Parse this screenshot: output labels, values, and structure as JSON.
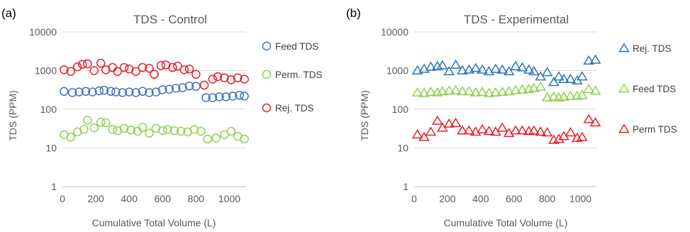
{
  "chart_data": [
    {
      "type": "scatter",
      "panel_label": "(a)",
      "title": "TDS - Control",
      "xlabel": "Cumulative Total Volume (L)",
      "ylabel": "TDS (PPM)",
      "xlim": [
        0,
        1100
      ],
      "ylim": [
        1,
        10000
      ],
      "yscale": "log",
      "grid": "horizontal",
      "legend": "right",
      "xticks": [
        "0",
        "200",
        "400",
        "600",
        "800",
        "1000"
      ],
      "yticks": [
        "1",
        "10",
        "100",
        "1000",
        "10000"
      ],
      "marker": "circle",
      "series": [
        {
          "name": "Feed TDS",
          "color": "#4472c4",
          "x": [
            10,
            60,
            100,
            140,
            180,
            220,
            250,
            290,
            320,
            360,
            400,
            440,
            480,
            520,
            560,
            600,
            640,
            680,
            720,
            760,
            800,
            860,
            900,
            940,
            980,
            1020,
            1060,
            1090
          ],
          "y": [
            290,
            270,
            280,
            290,
            280,
            300,
            310,
            290,
            280,
            270,
            280,
            270,
            290,
            270,
            280,
            320,
            330,
            350,
            360,
            400,
            390,
            200,
            200,
            210,
            210,
            220,
            230,
            220
          ]
        },
        {
          "name": "Perm. TDS",
          "color": "#8fd14f",
          "x": [
            10,
            50,
            90,
            130,
            150,
            190,
            230,
            260,
            300,
            330,
            370,
            410,
            450,
            480,
            520,
            560,
            600,
            630,
            670,
            710,
            750,
            790,
            830,
            870,
            920,
            970,
            1010,
            1050,
            1090
          ],
          "y": [
            22,
            19,
            26,
            30,
            52,
            33,
            46,
            45,
            30,
            28,
            32,
            29,
            27,
            34,
            24,
            32,
            28,
            30,
            28,
            27,
            26,
            30,
            27,
            17,
            18,
            22,
            27,
            20,
            17
          ]
        },
        {
          "name": "Rej. TDS",
          "color": "#e8212b",
          "x": [
            10,
            50,
            90,
            120,
            150,
            190,
            230,
            260,
            300,
            330,
            370,
            400,
            440,
            480,
            520,
            550,
            590,
            620,
            660,
            690,
            730,
            760,
            800,
            850,
            900,
            930,
            970,
            1010,
            1050,
            1090
          ],
          "y": [
            1050,
            950,
            1250,
            1450,
            1500,
            1000,
            1550,
            1050,
            1200,
            950,
            1200,
            1100,
            950,
            1200,
            1150,
            800,
            1350,
            1400,
            1200,
            1300,
            1050,
            1100,
            800,
            420,
            600,
            700,
            650,
            580,
            650,
            600
          ]
        }
      ]
    },
    {
      "type": "scatter",
      "panel_label": "(b)",
      "title": "TDS - Experimental",
      "xlabel": "Cumulative Total Volume (L)",
      "ylabel": "TDS (PPM)",
      "xlim": [
        0,
        1100
      ],
      "ylim": [
        1,
        10000
      ],
      "yscale": "log",
      "grid": "horizontal",
      "legend": "right",
      "xticks": [
        "0",
        "200",
        "400",
        "600",
        "800",
        "1000"
      ],
      "yticks": [
        "1",
        "10",
        "100",
        "1000",
        "10000"
      ],
      "marker": "triangle",
      "series": [
        {
          "name": "Rej. TDS",
          "color": "#2e75b6",
          "x": [
            20,
            60,
            100,
            140,
            170,
            210,
            250,
            290,
            330,
            370,
            410,
            450,
            490,
            530,
            570,
            610,
            650,
            690,
            720,
            760,
            800,
            840,
            870,
            900,
            940,
            980,
            1010,
            1050,
            1090
          ],
          "y": [
            1000,
            1100,
            1250,
            1300,
            1350,
            950,
            1400,
            1000,
            1050,
            1150,
            1050,
            950,
            1100,
            1050,
            950,
            1300,
            1200,
            1050,
            950,
            700,
            900,
            500,
            700,
            600,
            600,
            550,
            700,
            1800,
            1900
          ]
        },
        {
          "name": "Feed TDS",
          "color": "#8fd14f",
          "x": [
            20,
            60,
            100,
            140,
            170,
            210,
            250,
            290,
            330,
            370,
            410,
            450,
            490,
            530,
            570,
            610,
            650,
            690,
            720,
            760,
            800,
            840,
            870,
            900,
            940,
            980,
            1010,
            1050,
            1090
          ],
          "y": [
            270,
            260,
            280,
            270,
            290,
            300,
            310,
            290,
            290,
            270,
            280,
            260,
            270,
            280,
            290,
            310,
            320,
            330,
            350,
            380,
            200,
            210,
            200,
            210,
            220,
            220,
            230,
            330,
            300
          ]
        },
        {
          "name": "Perm TDS",
          "color": "#e8212b",
          "x": [
            20,
            60,
            100,
            140,
            170,
            210,
            250,
            290,
            330,
            370,
            410,
            450,
            490,
            530,
            570,
            610,
            650,
            690,
            720,
            760,
            800,
            840,
            870,
            900,
            940,
            980,
            1010,
            1050,
            1090
          ],
          "y": [
            22,
            19,
            26,
            50,
            33,
            42,
            44,
            28,
            28,
            26,
            30,
            27,
            26,
            33,
            24,
            28,
            28,
            27,
            28,
            26,
            25,
            16,
            17,
            20,
            25,
            18,
            19,
            55,
            45
          ]
        }
      ]
    }
  ]
}
